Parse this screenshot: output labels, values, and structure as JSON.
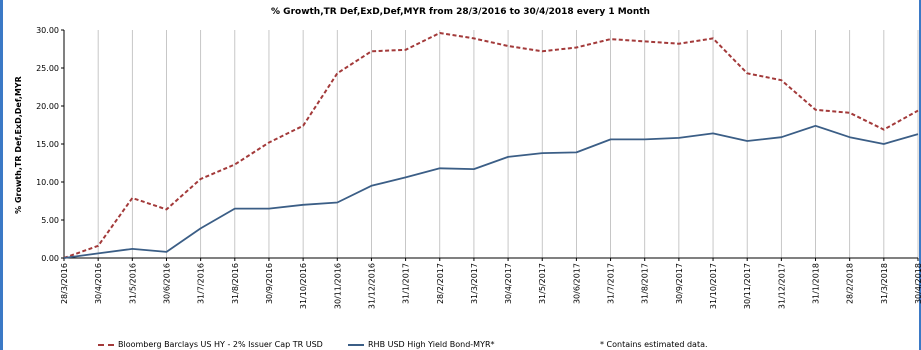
{
  "chart_data": {
    "type": "line",
    "title": "% Growth,TR Def,ExD,Def,MYR from 28/3/2016 to 30/4/2018 every 1 Month",
    "ylabel": "% Growth,TR Def,ExD,Def,MYR",
    "xlabel": "",
    "ylim": [
      0,
      30
    ],
    "yticks": [
      "0.00",
      "5.00",
      "10.00",
      "15.00",
      "20.00",
      "25.00",
      "30.00"
    ],
    "grid": "vertical",
    "categories": [
      "28/3/2016",
      "30/4/2016",
      "31/5/2016",
      "30/6/2016",
      "31/7/2016",
      "31/8/2016",
      "30/9/2016",
      "31/10/2016",
      "30/11/2016",
      "31/12/2016",
      "31/1/2017",
      "28/2/2017",
      "31/3/2017",
      "30/4/2017",
      "31/5/2017",
      "30/6/2017",
      "31/7/2017",
      "31/8/2017",
      "30/9/2017",
      "31/10/2017",
      "30/11/2017",
      "31/12/2017",
      "31/1/2018",
      "28/2/2018",
      "31/3/2018",
      "30/4/2018"
    ],
    "series": [
      {
        "name": "Bloomberg Barclays US HY - 2% Issuer Cap TR USD",
        "color": "#a33a3a",
        "style": "dashed",
        "values": [
          0.0,
          1.6,
          7.9,
          6.4,
          10.4,
          12.3,
          15.2,
          17.4,
          24.3,
          27.2,
          27.4,
          29.6,
          28.9,
          27.9,
          27.2,
          27.7,
          28.8,
          28.5,
          28.2,
          28.9,
          24.3,
          23.4,
          19.5,
          19.1,
          16.9,
          19.4
        ]
      },
      {
        "name": "RHB USD High Yield Bond-MYR*",
        "color": "#3b5e86",
        "style": "solid",
        "values": [
          0.0,
          0.6,
          1.2,
          0.8,
          3.9,
          6.5,
          6.5,
          7.0,
          7.3,
          9.5,
          10.6,
          11.8,
          11.7,
          13.3,
          13.8,
          13.9,
          15.6,
          15.6,
          15.8,
          16.4,
          15.4,
          15.9,
          17.4,
          15.9,
          15.0,
          16.3
        ]
      }
    ],
    "footnote": "*  Contains estimated data.",
    "legend_position": "bottom"
  }
}
